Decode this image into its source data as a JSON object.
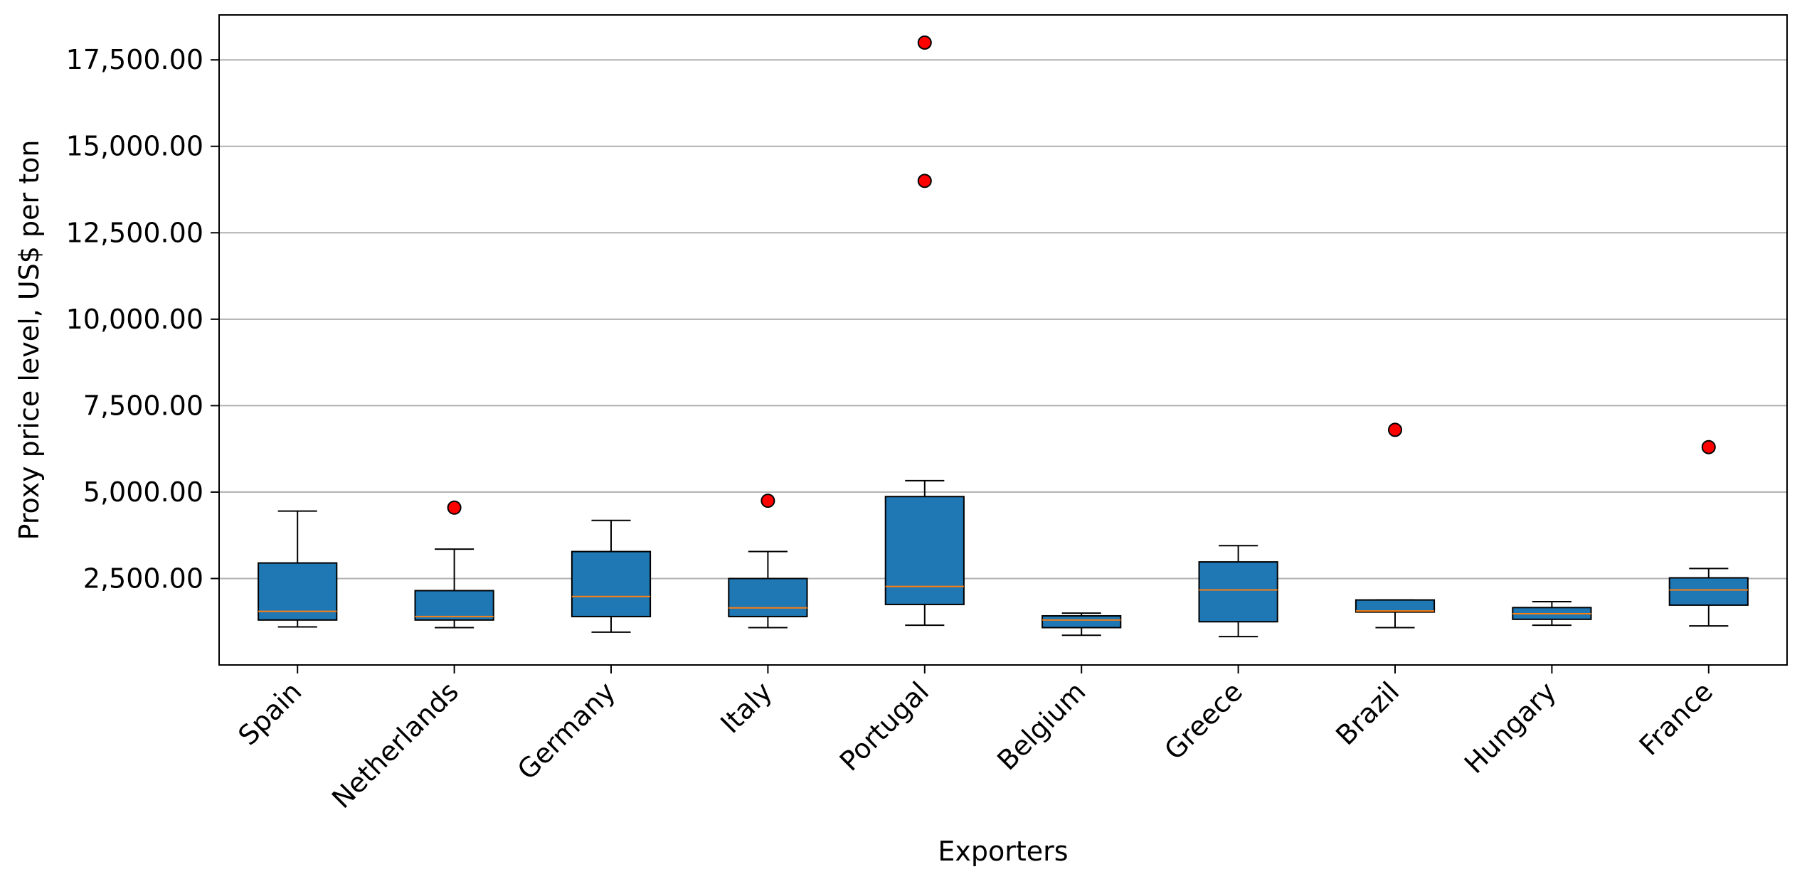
{
  "chart_data": {
    "type": "box",
    "title": "",
    "xlabel": "Exporters",
    "ylabel": "Proxy price level, US$ per ton",
    "ylim": [
      0,
      18800
    ],
    "yticks": [
      2500,
      5000,
      7500,
      10000,
      12500,
      15000,
      17500
    ],
    "ytick_labels": [
      "2,500.00",
      "5,000.00",
      "7,500.00",
      "10,000.00",
      "12,500.00",
      "15,000.00",
      "17,500.00"
    ],
    "grid": "horizontal",
    "categories": [
      "Spain",
      "Netherlands",
      "Germany",
      "Italy",
      "Portugal",
      "Belgium",
      "Greece",
      "Brazil",
      "Hungary",
      "France"
    ],
    "boxes": [
      {
        "whisker_low": 1100,
        "q1": 1300,
        "median": 1550,
        "q3": 2950,
        "whisker_high": 4450,
        "outliers": []
      },
      {
        "whisker_low": 1080,
        "q1": 1300,
        "median": 1400,
        "q3": 2150,
        "whisker_high": 3350,
        "outliers": [
          4550
        ]
      },
      {
        "whisker_low": 950,
        "q1": 1400,
        "median": 1980,
        "q3": 3280,
        "whisker_high": 4180,
        "outliers": []
      },
      {
        "whisker_low": 1080,
        "q1": 1400,
        "median": 1650,
        "q3": 2500,
        "whisker_high": 3280,
        "outliers": [
          4750
        ]
      },
      {
        "whisker_low": 1150,
        "q1": 1750,
        "median": 2270,
        "q3": 4870,
        "whisker_high": 5330,
        "outliers": [
          14000,
          18000
        ]
      },
      {
        "whisker_low": 860,
        "q1": 1080,
        "median": 1300,
        "q3": 1420,
        "whisker_high": 1500,
        "outliers": []
      },
      {
        "whisker_low": 820,
        "q1": 1250,
        "median": 2170,
        "q3": 2980,
        "whisker_high": 3450,
        "outliers": []
      },
      {
        "whisker_low": 1080,
        "q1": 1530,
        "median": 1560,
        "q3": 1880,
        "whisker_high": 1880,
        "outliers": [
          6800
        ]
      },
      {
        "whisker_low": 1150,
        "q1": 1320,
        "median": 1480,
        "q3": 1660,
        "whisker_high": 1830,
        "outliers": []
      },
      {
        "whisker_low": 1130,
        "q1": 1730,
        "median": 2170,
        "q3": 2520,
        "whisker_high": 2790,
        "outliers": [
          6300
        ]
      }
    ],
    "colors": {
      "box_fill": "#1f77b4",
      "median": "#ff7f0e",
      "outlier": "#ff0000",
      "grid": "#b0b0b0",
      "axis": "#000000"
    }
  }
}
